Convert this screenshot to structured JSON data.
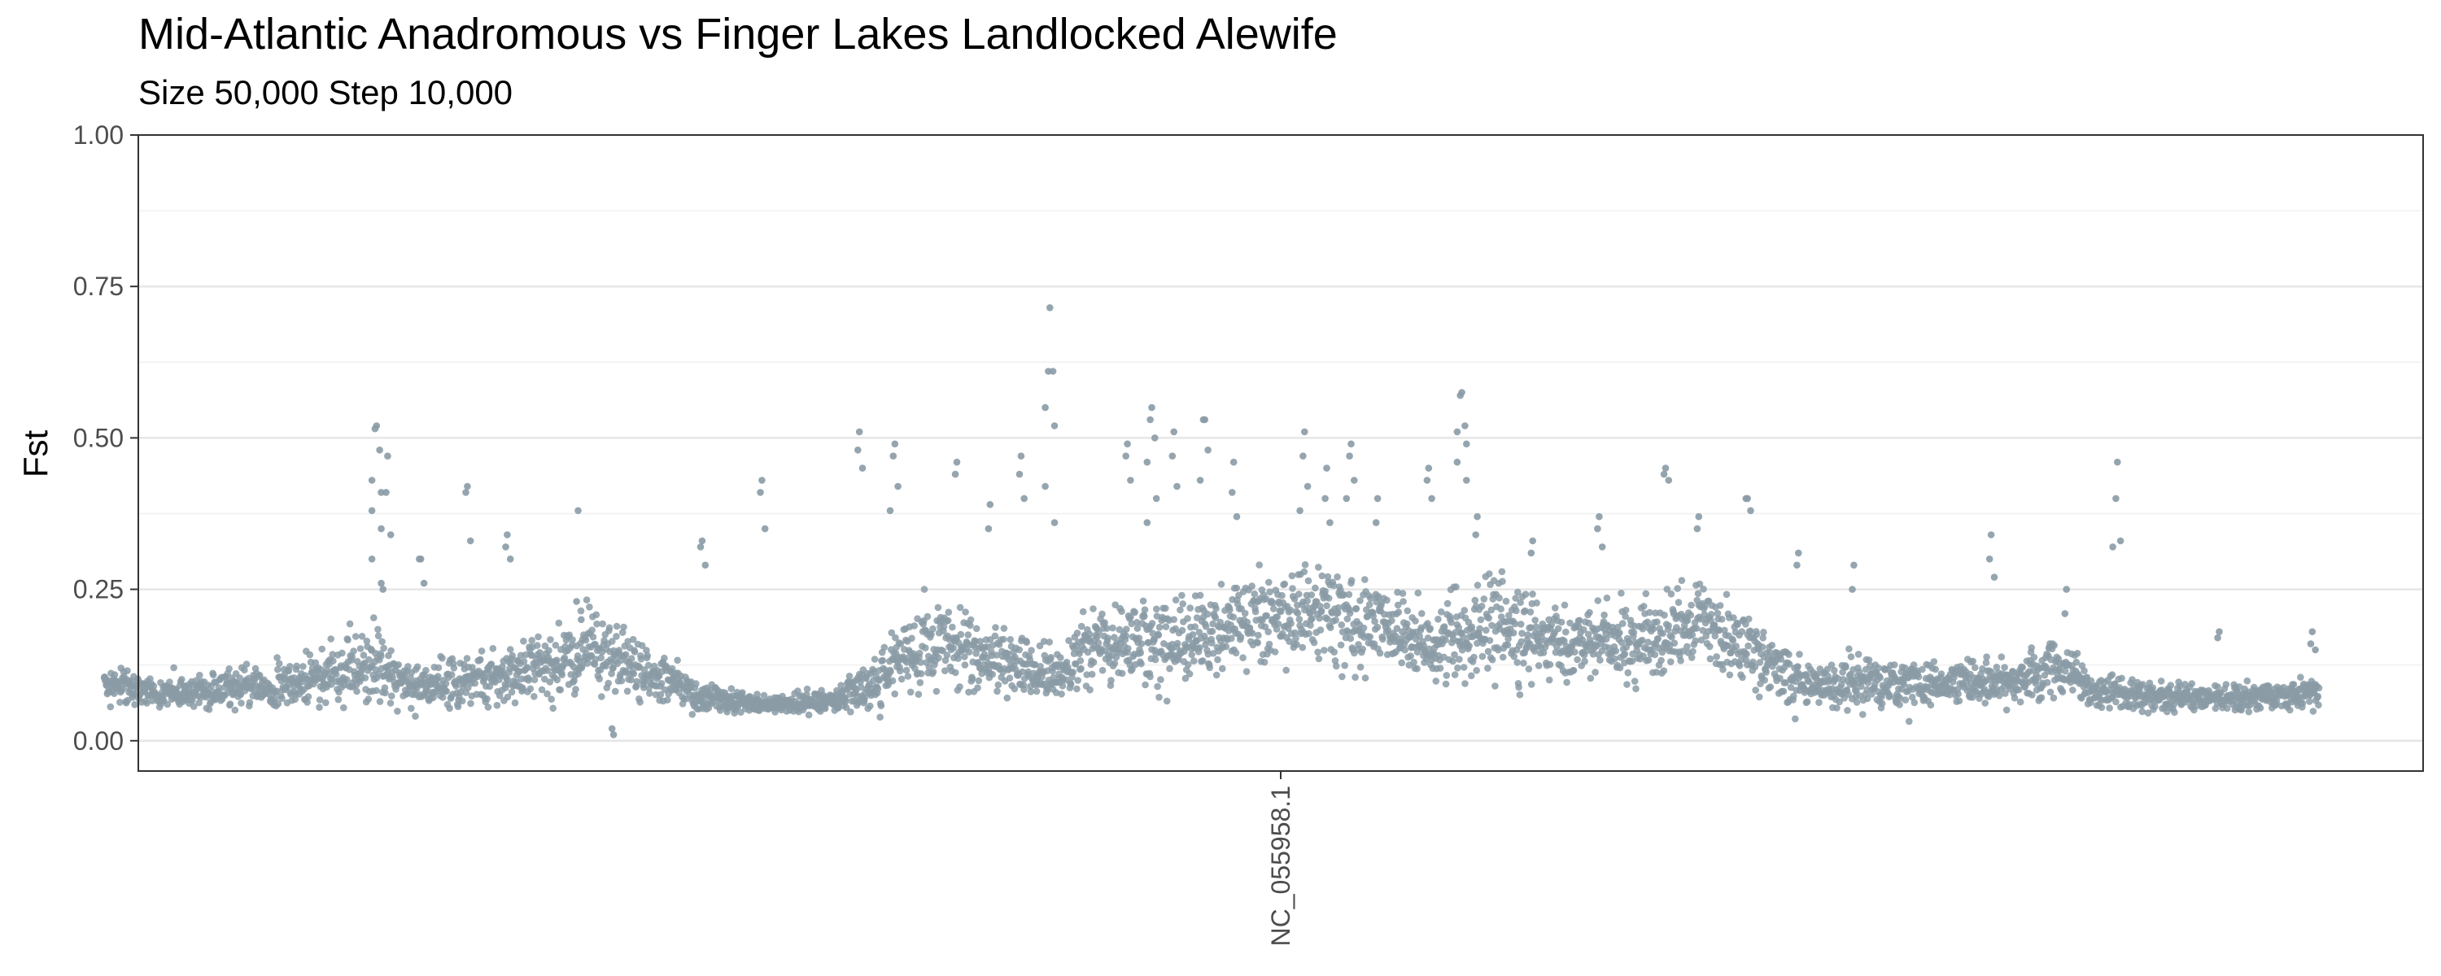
{
  "chart_data": {
    "type": "scatter",
    "title": "Mid-Atlantic Anadromous vs Finger Lakes Landlocked Alewife",
    "subtitle": "Size 50,000 Step 10,000",
    "xlabel": "",
    "ylabel": "Fst",
    "ylim": [
      0,
      1
    ],
    "yticks": [
      {
        "value": 0,
        "label": "0.00"
      },
      {
        "value": 0.25,
        "label": "0.25"
      },
      {
        "value": 0.5,
        "label": "0.50"
      },
      {
        "value": 0.75,
        "label": "0.75"
      },
      {
        "value": 1,
        "label": "1.00"
      }
    ],
    "xticks": [
      {
        "value": 0.5,
        "label": "NC_055958.1"
      }
    ],
    "xlim": [
      0,
      1
    ],
    "grid": true,
    "point_color": "#8a9ba6",
    "profile": [
      [
        0.0,
        0.09,
        0.03
      ],
      [
        0.03,
        0.08,
        0.025
      ],
      [
        0.06,
        0.085,
        0.03
      ],
      [
        0.09,
        0.095,
        0.04
      ],
      [
        0.12,
        0.13,
        0.07
      ],
      [
        0.14,
        0.09,
        0.04
      ],
      [
        0.17,
        0.1,
        0.05
      ],
      [
        0.2,
        0.12,
        0.06
      ],
      [
        0.22,
        0.15,
        0.07
      ],
      [
        0.24,
        0.12,
        0.06
      ],
      [
        0.27,
        0.07,
        0.025
      ],
      [
        0.3,
        0.06,
        0.015
      ],
      [
        0.33,
        0.065,
        0.02
      ],
      [
        0.35,
        0.1,
        0.05
      ],
      [
        0.37,
        0.17,
        0.07
      ],
      [
        0.4,
        0.13,
        0.06
      ],
      [
        0.43,
        0.11,
        0.05
      ],
      [
        0.45,
        0.17,
        0.08
      ],
      [
        0.48,
        0.16,
        0.08
      ],
      [
        0.52,
        0.2,
        0.08
      ],
      [
        0.55,
        0.21,
        0.09
      ],
      [
        0.58,
        0.18,
        0.07
      ],
      [
        0.6,
        0.16,
        0.07
      ],
      [
        0.63,
        0.19,
        0.08
      ],
      [
        0.66,
        0.16,
        0.07
      ],
      [
        0.69,
        0.16,
        0.07
      ],
      [
        0.72,
        0.2,
        0.07
      ],
      [
        0.75,
        0.13,
        0.06
      ],
      [
        0.77,
        0.09,
        0.04
      ],
      [
        0.8,
        0.1,
        0.05
      ],
      [
        0.83,
        0.09,
        0.04
      ],
      [
        0.86,
        0.1,
        0.04
      ],
      [
        0.88,
        0.12,
        0.05
      ],
      [
        0.9,
        0.08,
        0.03
      ],
      [
        0.93,
        0.07,
        0.025
      ],
      [
        0.96,
        0.07,
        0.025
      ],
      [
        1.0,
        0.08,
        0.03
      ]
    ],
    "peaks": [
      {
        "x": 0.123,
        "y": [
          0.52,
          0.515,
          0.48,
          0.43,
          0.41,
          0.38,
          0.35,
          0.3,
          0.26
        ]
      },
      {
        "x": 0.128,
        "y": [
          0.47,
          0.41,
          0.34,
          0.25
        ]
      },
      {
        "x": 0.143,
        "y": [
          0.3,
          0.3,
          0.26
        ]
      },
      {
        "x": 0.164,
        "y": [
          0.42,
          0.41,
          0.33
        ]
      },
      {
        "x": 0.182,
        "y": [
          0.34,
          0.32,
          0.3
        ]
      },
      {
        "x": 0.214,
        "y": [
          0.38,
          0.23,
          0.2
        ]
      },
      {
        "x": 0.23,
        "y": [
          0.01,
          0.02
        ]
      },
      {
        "x": 0.27,
        "y": [
          0.33,
          0.32,
          0.29
        ]
      },
      {
        "x": 0.297,
        "y": [
          0.43,
          0.41,
          0.35
        ]
      },
      {
        "x": 0.341,
        "y": [
          0.51,
          0.48,
          0.45
        ]
      },
      {
        "x": 0.357,
        "y": [
          0.49,
          0.47,
          0.42,
          0.38
        ]
      },
      {
        "x": 0.385,
        "y": [
          0.46,
          0.44
        ]
      },
      {
        "x": 0.414,
        "y": [
          0.47,
          0.44,
          0.4
        ]
      },
      {
        "x": 0.4,
        "y": [
          0.39,
          0.35
        ]
      },
      {
        "x": 0.427,
        "y": [
          0.715,
          0.61,
          0.61,
          0.55,
          0.52,
          0.42,
          0.36
        ]
      },
      {
        "x": 0.462,
        "y": [
          0.49,
          0.47,
          0.43
        ]
      },
      {
        "x": 0.473,
        "y": [
          0.55,
          0.53,
          0.5,
          0.46,
          0.4,
          0.36
        ]
      },
      {
        "x": 0.483,
        "y": [
          0.51,
          0.47,
          0.42
        ]
      },
      {
        "x": 0.497,
        "y": [
          0.53,
          0.53,
          0.48,
          0.43
        ]
      },
      {
        "x": 0.51,
        "y": [
          0.46,
          0.41,
          0.37
        ]
      },
      {
        "x": 0.542,
        "y": [
          0.51,
          0.47,
          0.42,
          0.38
        ]
      },
      {
        "x": 0.552,
        "y": [
          0.45,
          0.4,
          0.36
        ]
      },
      {
        "x": 0.563,
        "y": [
          0.49,
          0.47,
          0.43,
          0.4
        ]
      },
      {
        "x": 0.575,
        "y": [
          0.4,
          0.36
        ]
      },
      {
        "x": 0.598,
        "y": [
          0.45,
          0.43,
          0.4
        ]
      },
      {
        "x": 0.613,
        "y": [
          0.575,
          0.57,
          0.52,
          0.51,
          0.49,
          0.46,
          0.43
        ]
      },
      {
        "x": 0.62,
        "y": [
          0.37,
          0.34
        ]
      },
      {
        "x": 0.645,
        "y": [
          0.33,
          0.31
        ]
      },
      {
        "x": 0.675,
        "y": [
          0.37,
          0.35,
          0.32
        ]
      },
      {
        "x": 0.705,
        "y": [
          0.45,
          0.44,
          0.43
        ]
      },
      {
        "x": 0.72,
        "y": [
          0.37,
          0.35
        ]
      },
      {
        "x": 0.742,
        "y": [
          0.4,
          0.4,
          0.38
        ]
      },
      {
        "x": 0.765,
        "y": [
          0.31,
          0.29
        ]
      },
      {
        "x": 0.79,
        "y": [
          0.29,
          0.25
        ]
      },
      {
        "x": 0.852,
        "y": [
          0.34,
          0.3,
          0.27
        ]
      },
      {
        "x": 0.886,
        "y": [
          0.25,
          0.21
        ]
      },
      {
        "x": 0.909,
        "y": [
          0.46,
          0.4,
          0.33,
          0.32
        ]
      },
      {
        "x": 0.955,
        "y": [
          0.18,
          0.17
        ]
      },
      {
        "x": 0.997,
        "y": [
          0.18,
          0.16,
          0.15
        ]
      }
    ]
  }
}
